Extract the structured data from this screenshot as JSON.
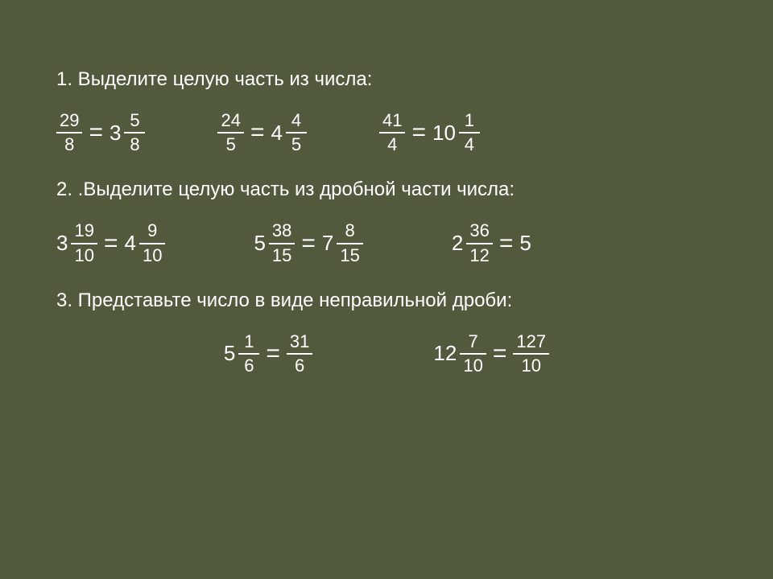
{
  "colors": {
    "background": "#525a3e",
    "text": "#ffffff",
    "bar": "#ffffff"
  },
  "typography": {
    "font_family": "Arial, sans-serif",
    "heading_size_pt": 18,
    "body_size_pt": 18,
    "fraction_size_pt": 16
  },
  "sections": {
    "s1": {
      "heading": "1. Выделите целую часть из числа:",
      "items": [
        {
          "left": {
            "num": "29",
            "den": "8"
          },
          "right": {
            "whole": "3",
            "num": "5",
            "den": "8"
          }
        },
        {
          "left": {
            "num": "24",
            "den": "5"
          },
          "right": {
            "whole": "4",
            "num": "4",
            "den": "5"
          }
        },
        {
          "left": {
            "num": "41",
            "den": "4"
          },
          "right": {
            "whole": "10",
            "num": "1",
            "den": "4"
          }
        }
      ]
    },
    "s2": {
      "heading": "2. .Выделите целую часть из дробной части числа:",
      "items": [
        {
          "left": {
            "whole": "3",
            "num": "19",
            "den": "10"
          },
          "right": {
            "whole": "4",
            "num": "9",
            "den": "10"
          }
        },
        {
          "left": {
            "whole": "5",
            "num": "38",
            "den": "15"
          },
          "right": {
            "whole": "7",
            "num": "8",
            "den": "15"
          }
        },
        {
          "left": {
            "whole": "2",
            "num": "36",
            "den": "12"
          },
          "right_whole_only": "5"
        }
      ]
    },
    "s3": {
      "heading": "3. Представьте число в виде неправильной дроби:",
      "items": [
        {
          "left": {
            "whole": "5",
            "num": "1",
            "den": "6"
          },
          "right": {
            "num": "31",
            "den": "6"
          }
        },
        {
          "left": {
            "whole": "12",
            "num": "7",
            "den": "10"
          },
          "right": {
            "num": "127",
            "den": "10"
          }
        }
      ]
    }
  },
  "eq_symbol": "="
}
